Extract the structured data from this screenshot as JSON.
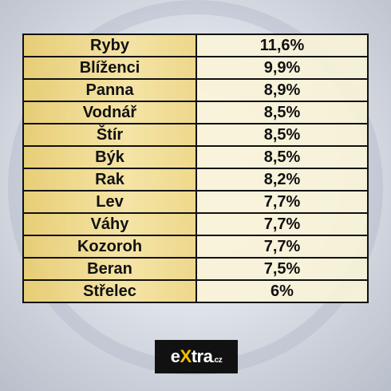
{
  "table": {
    "rows": [
      [
        "Ryby",
        "11,6%"
      ],
      [
        "Blíženci",
        "9,9%"
      ],
      [
        "Panna",
        "8,9%"
      ],
      [
        "Vodnář",
        "8,5%"
      ],
      [
        "Štír",
        "8,5%"
      ],
      [
        "Býk",
        "8,5%"
      ],
      [
        "Rak",
        "8,2%"
      ],
      [
        "Lev",
        "7,7%"
      ],
      [
        "Váhy",
        "7,7%"
      ],
      [
        "Kozoroh",
        "7,7%"
      ],
      [
        "Beran",
        "7,5%"
      ],
      [
        "Střelec",
        "6%"
      ]
    ]
  },
  "logo": [
    "e",
    "X",
    "tra",
    ".cz"
  ]
}
